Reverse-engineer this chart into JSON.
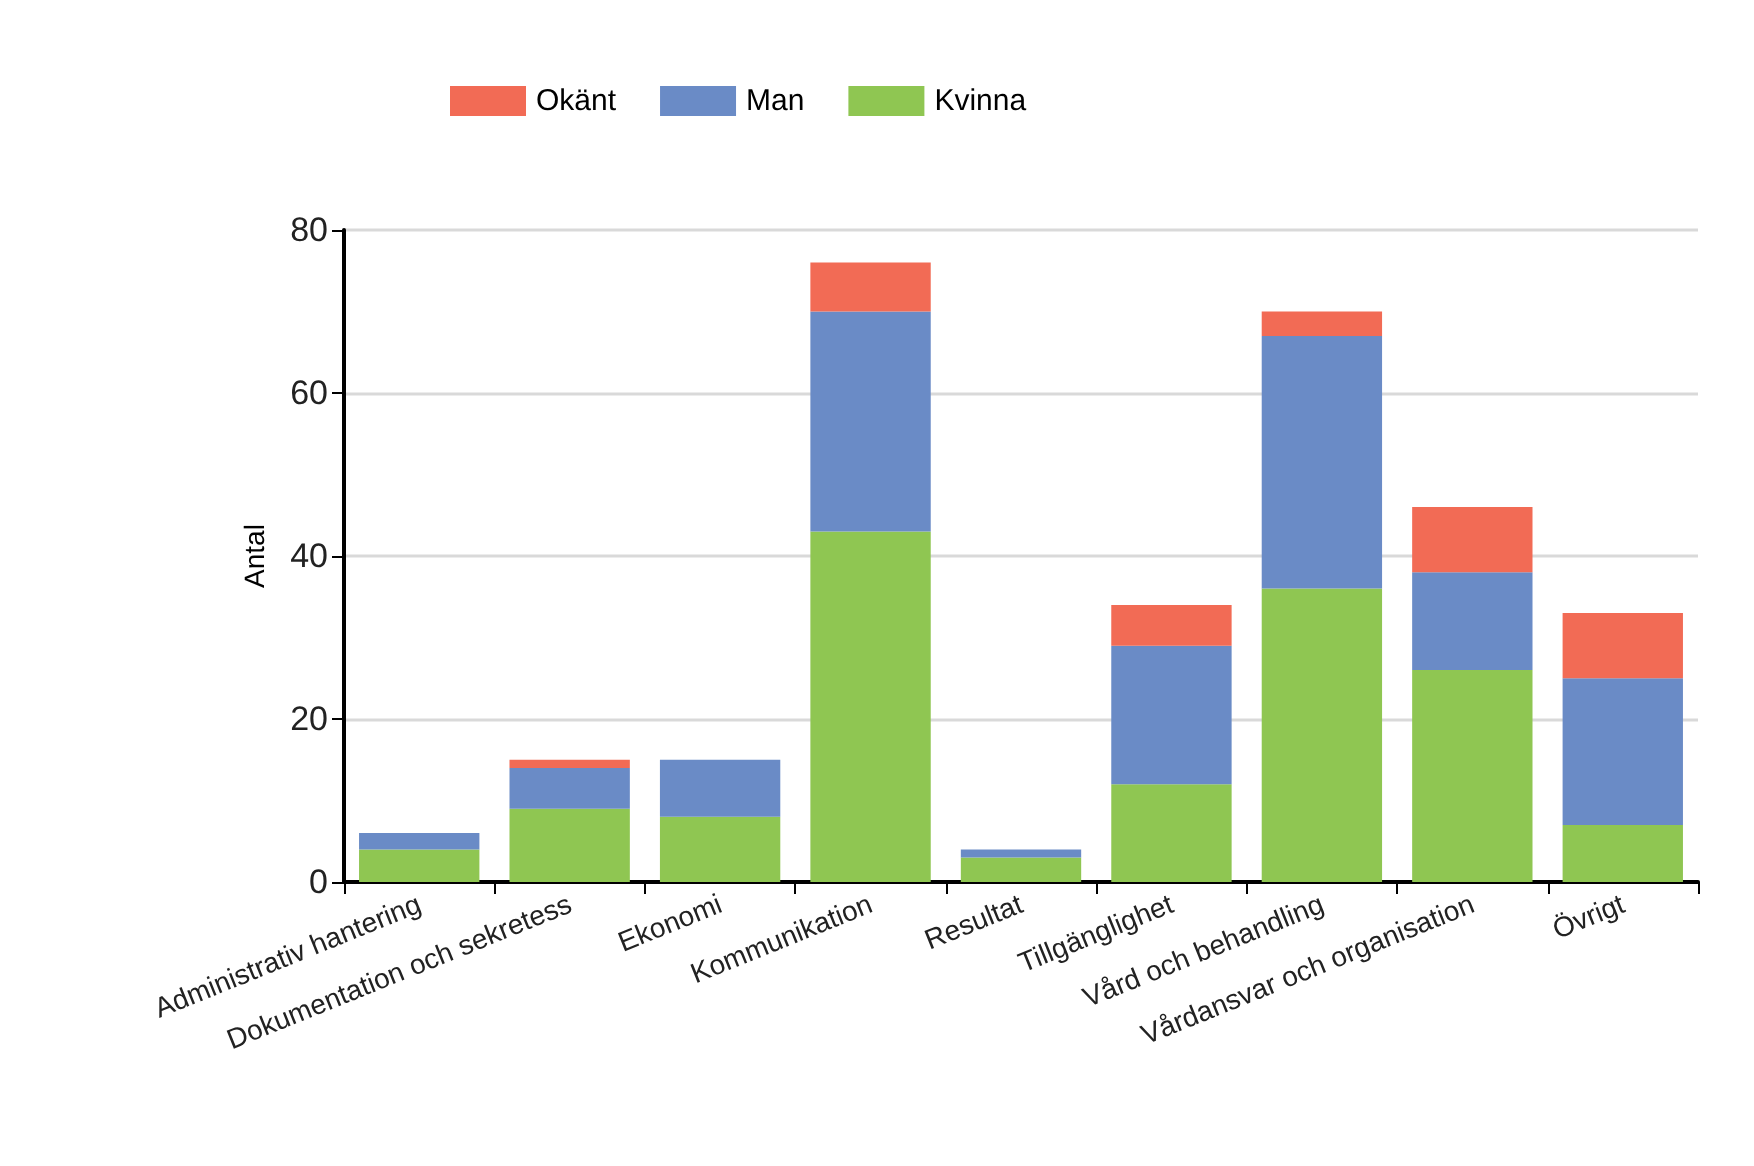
{
  "chart_data": {
    "type": "bar",
    "stacked": true,
    "ylabel": "Antal",
    "categories": [
      "Administrativ hantering",
      "Dokumentation och sekretess",
      "Ekonomi",
      "Kommunikation",
      "Resultat",
      "Tillgänglighet",
      "Vård och behandling",
      "Vårdansvar och organisation",
      "Övrigt"
    ],
    "series": [
      {
        "name": "Kvinna",
        "color": "#8fc652",
        "values": [
          4,
          9,
          8,
          43,
          3,
          12,
          36,
          26,
          7
        ]
      },
      {
        "name": "Man",
        "color": "#6a8bc6",
        "values": [
          2,
          5,
          7,
          27,
          1,
          17,
          31,
          12,
          18
        ]
      },
      {
        "name": "Okänt",
        "color": "#f26b55",
        "values": [
          0,
          1,
          0,
          6,
          0,
          5,
          3,
          8,
          8
        ]
      }
    ],
    "ylim": [
      0,
      80
    ],
    "yticks": [
      0,
      20,
      40,
      60,
      80
    ],
    "grid": "y",
    "legend": "top"
  }
}
